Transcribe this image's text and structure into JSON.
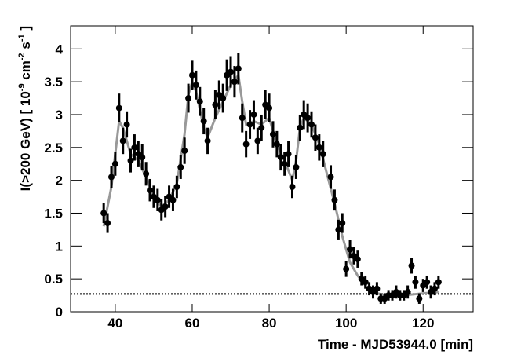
{
  "chart_data": {
    "type": "scatter",
    "x_label": "Time - MJD53944.0 [min]",
    "y_label_parts": [
      "I(>200 GeV) [ 10",
      "-9",
      " cm",
      "-2",
      " s",
      "-1",
      " ]"
    ],
    "xlim": [
      28.4,
      133
    ],
    "ylim": [
      0,
      4.35
    ],
    "xticks": [
      40,
      60,
      80,
      100,
      120
    ],
    "yticks": [
      0,
      0.5,
      1,
      1.5,
      2,
      2.5,
      3,
      3.5,
      4
    ],
    "points": {
      "color": "#000000",
      "x": [
        37,
        38,
        39,
        40,
        41,
        42,
        43,
        44,
        45,
        46,
        47,
        48,
        49,
        50,
        51,
        52,
        53,
        54,
        55,
        56,
        57,
        58,
        59,
        60,
        61,
        62,
        63,
        64,
        66,
        67,
        68,
        69,
        70,
        71,
        72,
        73,
        74,
        75,
        76,
        77,
        78,
        79,
        80,
        81,
        82,
        83,
        84,
        85,
        86,
        87,
        88,
        89,
        90,
        91,
        92,
        93,
        94,
        96,
        97,
        98,
        99,
        100,
        101,
        102,
        103,
        104,
        105,
        106,
        107,
        108,
        109,
        110,
        111,
        112,
        113,
        114,
        115,
        116,
        117,
        118,
        119,
        120,
        121,
        122,
        123,
        124
      ],
      "values": [
        1.5,
        1.35,
        2.05,
        2.25,
        3.1,
        2.6,
        2.85,
        2.3,
        2.5,
        2.4,
        2.35,
        2.1,
        1.85,
        1.75,
        1.7,
        1.55,
        1.6,
        1.75,
        1.7,
        1.9,
        2.2,
        2.45,
        3.25,
        3.6,
        3.45,
        3.2,
        2.9,
        2.6,
        3.15,
        3.3,
        3.25,
        3.6,
        3.65,
        3.5,
        3.7,
        2.95,
        2.55,
        2.85,
        3.0,
        2.6,
        2.8,
        3.15,
        3.1,
        2.7,
        2.55,
        2.35,
        2.25,
        2.4,
        1.9,
        2.2,
        2.8,
        3.0,
        2.95,
        2.85,
        2.65,
        2.5,
        2.4,
        2.05,
        1.7,
        1.25,
        1.35,
        0.65,
        0.95,
        0.85,
        0.8,
        0.5,
        0.45,
        0.35,
        0.3,
        0.35,
        0.2,
        0.2,
        0.25,
        0.25,
        0.3,
        0.25,
        0.25,
        0.3,
        0.7,
        0.45,
        0.2,
        0.4,
        0.45,
        0.3,
        0.35,
        0.45
      ],
      "errors": [
        0.15,
        0.15,
        0.17,
        0.18,
        0.22,
        0.2,
        0.2,
        0.18,
        0.2,
        0.2,
        0.2,
        0.18,
        0.17,
        0.17,
        0.17,
        0.16,
        0.16,
        0.17,
        0.17,
        0.17,
        0.18,
        0.2,
        0.22,
        0.22,
        0.22,
        0.22,
        0.2,
        0.2,
        0.22,
        0.22,
        0.22,
        0.24,
        0.24,
        0.24,
        0.24,
        0.22,
        0.2,
        0.22,
        0.22,
        0.2,
        0.2,
        0.22,
        0.22,
        0.2,
        0.2,
        0.2,
        0.18,
        0.2,
        0.17,
        0.18,
        0.2,
        0.22,
        0.22,
        0.2,
        0.2,
        0.2,
        0.2,
        0.18,
        0.16,
        0.15,
        0.15,
        0.12,
        0.14,
        0.13,
        0.13,
        0.1,
        0.1,
        0.1,
        0.1,
        0.1,
        0.08,
        0.08,
        0.08,
        0.08,
        0.1,
        0.08,
        0.08,
        0.1,
        0.12,
        0.1,
        0.08,
        0.1,
        0.1,
        0.1,
        0.1,
        0.1
      ]
    },
    "fit": {
      "color": "#999999",
      "x": [
        37,
        39,
        41,
        42,
        44,
        46,
        48,
        50,
        52,
        54,
        56,
        58,
        59,
        60,
        61,
        63,
        64,
        66,
        68,
        70,
        72,
        73,
        74,
        76,
        78,
        80,
        82,
        84,
        86,
        87,
        88,
        89,
        91,
        93,
        95,
        97,
        99,
        101,
        103,
        105,
        107,
        110,
        115,
        120,
        124
      ],
      "values": [
        1.3,
        1.9,
        2.9,
        2.8,
        2.4,
        2.3,
        2.05,
        1.75,
        1.6,
        1.7,
        1.95,
        2.7,
        3.3,
        3.5,
        3.35,
        2.8,
        2.65,
        2.95,
        3.2,
        3.45,
        3.6,
        3.2,
        2.85,
        2.9,
        2.85,
        2.95,
        2.55,
        2.3,
        2.0,
        2.3,
        2.8,
        2.95,
        2.85,
        2.55,
        2.1,
        1.65,
        1.15,
        0.75,
        0.55,
        0.4,
        0.3,
        0.25,
        0.25,
        0.28,
        0.3
      ]
    },
    "baseline": 0.27
  }
}
